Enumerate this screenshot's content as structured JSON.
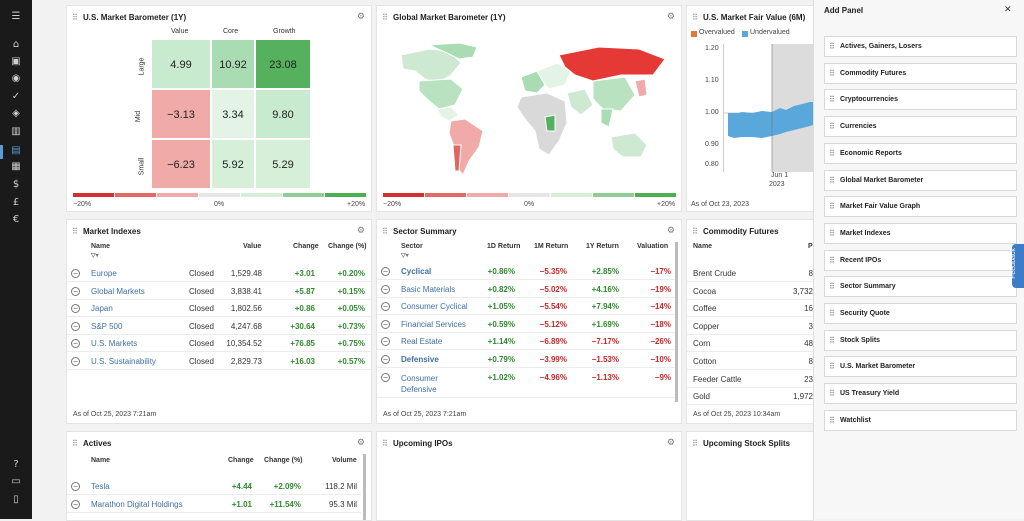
{
  "nav": {
    "icons": [
      "menu-icon",
      "home-icon",
      "briefcase-icon",
      "eye-icon",
      "check-icon",
      "tag-icon",
      "bank-icon",
      "chart-icon",
      "calendar-icon",
      "dollar-icon",
      "pound-icon",
      "euro-icon",
      "help-icon",
      "chat-icon",
      "document-icon"
    ]
  },
  "us_barometer": {
    "title": "U.S. Market Barometer (1Y)",
    "col_headers": [
      "Value",
      "Core",
      "Growth"
    ],
    "row_headers": [
      "Large",
      "Mid",
      "Small"
    ],
    "cells": [
      [
        "4.99",
        "10.92",
        "23.08"
      ],
      [
        "−3.13",
        "3.34",
        "9.80"
      ],
      [
        "−6.23",
        "5.92",
        "5.29"
      ]
    ],
    "cell_colors": [
      [
        "#c8ebcf",
        "#a9dcb2",
        "#55b15d"
      ],
      [
        "#f0aaa8",
        "#e3f4e6",
        "#c8ebcf"
      ],
      [
        "#f0aaa8",
        "#d5efd9",
        "#d5efd9"
      ]
    ],
    "scale": [
      "−20%",
      "0%",
      "+20%"
    ]
  },
  "global_barometer": {
    "title": "Global Market Barometer (1Y)",
    "scale": [
      "−20%",
      "0%",
      "+20%"
    ]
  },
  "fair_value": {
    "title": "U.S. Market Fair Value (6M)",
    "legend": [
      "Overvalued",
      "Undervalued"
    ],
    "legend_colors": [
      "#e07b39",
      "#5aa7dc"
    ],
    "y_ticks": [
      "1.20",
      "1.10",
      "1.00",
      "0.90",
      "0.80"
    ],
    "x_label": "Jun 1",
    "x_label2": "2023",
    "asof": "As of Oct 23, 2023"
  },
  "market_indexes": {
    "title": "Market Indexes",
    "headers": {
      "name": "Name",
      "value": "Value",
      "change": "Change",
      "change_pct": "Change (%)"
    },
    "rows": [
      {
        "name": "Europe",
        "status": "Closed",
        "value": "1,529.48",
        "change": "+3.01",
        "pct": "+0.20%"
      },
      {
        "name": "Global Markets",
        "status": "Closed",
        "value": "3,838.41",
        "change": "+5.87",
        "pct": "+0.15%"
      },
      {
        "name": "Japan",
        "status": "Closed",
        "value": "1,802.56",
        "change": "+0.86",
        "pct": "+0.05%"
      },
      {
        "name": "S&P 500",
        "status": "Closed",
        "value": "4,247.68",
        "change": "+30.64",
        "pct": "+0.73%"
      },
      {
        "name": "U.S. Markets",
        "status": "Closed",
        "value": "10,354.52",
        "change": "+76.85",
        "pct": "+0.75%"
      },
      {
        "name": "U.S. Sustainability",
        "status": "Closed",
        "value": "2,829.73",
        "change": "+16.03",
        "pct": "+0.57%"
      }
    ],
    "asof": "As of Oct 25, 2023 7:21am"
  },
  "sector_summary": {
    "title": "Sector Summary",
    "headers": {
      "sector": "Sector",
      "d1": "1D Return",
      "m1": "1M Return",
      "y1": "1Y Return",
      "val": "Valuation"
    },
    "rows": [
      {
        "name": "Cyclical",
        "bold": true,
        "d1": "+0.86%",
        "m1": "−5.35%",
        "y1": "+2.85%",
        "val": "−17%"
      },
      {
        "name": "Basic Materials",
        "bold": false,
        "d1": "+0.82%",
        "m1": "−5.02%",
        "y1": "+4.16%",
        "val": "−19%"
      },
      {
        "name": "Consumer Cyclical",
        "bold": false,
        "d1": "+1.05%",
        "m1": "−5.54%",
        "y1": "+7.94%",
        "val": "−14%"
      },
      {
        "name": "Financial Services",
        "bold": false,
        "d1": "+0.59%",
        "m1": "−5.12%",
        "y1": "+1.69%",
        "val": "−18%"
      },
      {
        "name": "Real Estate",
        "bold": false,
        "d1": "+1.14%",
        "m1": "−6.89%",
        "y1": "−7.17%",
        "val": "−26%"
      },
      {
        "name": "Defensive",
        "bold": true,
        "d1": "+0.79%",
        "m1": "−3.99%",
        "y1": "−1.53%",
        "val": "−10%"
      },
      {
        "name": "Consumer Defensive",
        "bold": false,
        "d1": "+1.02%",
        "m1": "−4.96%",
        "y1": "−1.13%",
        "val": "−9%"
      }
    ],
    "asof": "As of Oct 25, 2023 7:21am"
  },
  "commodity": {
    "title": "Commodity Futures",
    "headers": {
      "name": "Name",
      "p": "P"
    },
    "rows": [
      {
        "name": "Brent Crude",
        "v": "8"
      },
      {
        "name": "Cocoa",
        "v": "3,732"
      },
      {
        "name": "Coffee",
        "v": "16"
      },
      {
        "name": "Copper",
        "v": "3"
      },
      {
        "name": "Corn",
        "v": "48"
      },
      {
        "name": "Cotton",
        "v": "8"
      },
      {
        "name": "Feeder Cattle",
        "v": "23"
      },
      {
        "name": "Gold",
        "v": "1,972"
      }
    ],
    "asof": "As of Oct 25, 2023 10:34am"
  },
  "actives": {
    "title": "Actives",
    "headers": {
      "name": "Name",
      "change": "Change",
      "pct": "Change (%)",
      "volume": "Volume"
    },
    "rows": [
      {
        "name": "Tesla",
        "change": "+4.44",
        "pct": "+2.09%",
        "vol": "118.2 Mil"
      },
      {
        "name": "Marathon Digital Holdings",
        "change": "+1.01",
        "pct": "+11.54%",
        "vol": "95.3 Mil"
      }
    ]
  },
  "upcoming_ipos": {
    "title": "Upcoming IPOs"
  },
  "upcoming_splits": {
    "title": "Upcoming Stock Splits"
  },
  "add_panel": {
    "title": "Add Panel",
    "close": "✕",
    "items": [
      "Actives, Gainers, Losers",
      "Commodity Futures",
      "Cryptocurrencies",
      "Currencies",
      "Economic Reports",
      "Global Market Barometer",
      "Market Fair Value Graph",
      "Market Indexes",
      "Recent IPOs",
      "Sector Summary",
      "Security Quote",
      "Stock Splits",
      "U.S. Market Barometer",
      "US Treasury Yield",
      "Watchlist"
    ]
  },
  "feedback": "Feedback"
}
